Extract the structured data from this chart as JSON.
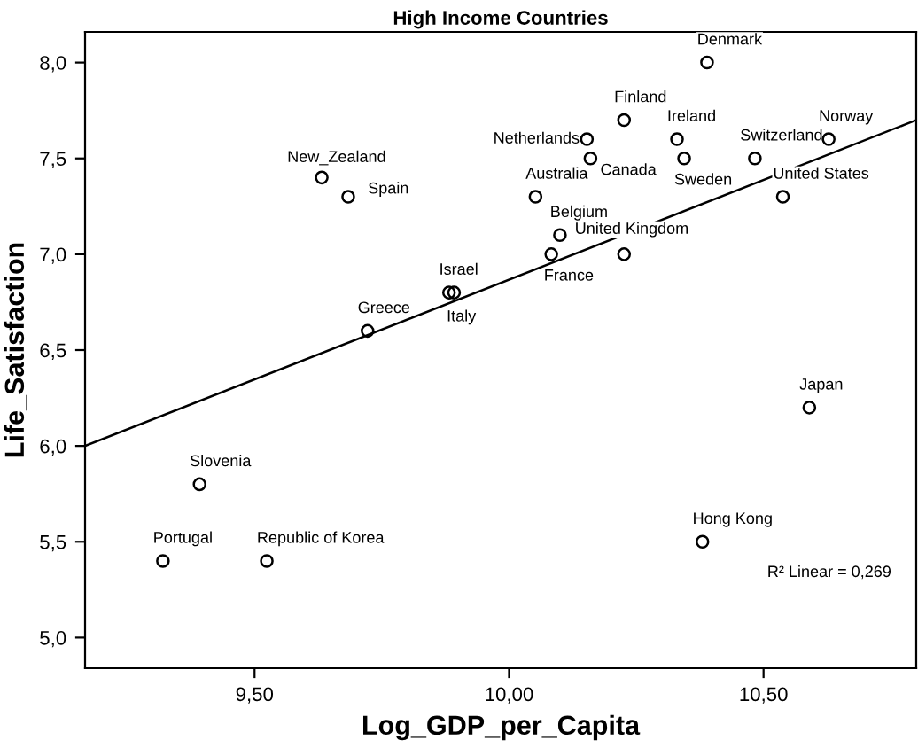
{
  "chart_data": {
    "type": "scatter",
    "title": "High Income Countries",
    "xlabel": "Log_GDP_per_Capita",
    "ylabel": "Life_Satisfaction",
    "xlim": [
      9.167,
      10.8
    ],
    "ylim": [
      4.84,
      8.16
    ],
    "xticks": [
      {
        "value": 9.5,
        "label": "9,50"
      },
      {
        "value": 10.0,
        "label": "10,00"
      },
      {
        "value": 10.5,
        "label": "10,50"
      }
    ],
    "yticks": [
      {
        "value": 5.0,
        "label": "5,0"
      },
      {
        "value": 5.5,
        "label": "5,5"
      },
      {
        "value": 6.0,
        "label": "6,0"
      },
      {
        "value": 6.5,
        "label": "6,5"
      },
      {
        "value": 7.0,
        "label": "7,0"
      },
      {
        "value": 7.5,
        "label": "7,5"
      },
      {
        "value": 8.0,
        "label": "8,0"
      }
    ],
    "grid": false,
    "marker": "circle",
    "series": [
      {
        "color": "#000000",
        "x": [
          10.389,
          10.226,
          10.33,
          10.628,
          10.153,
          10.16,
          10.344,
          10.483,
          9.632,
          9.684,
          10.052,
          10.538,
          10.1,
          10.083,
          10.226,
          9.882,
          9.892,
          9.722,
          10.59,
          10.38,
          9.392,
          9.32,
          9.524
        ],
        "values": [
          8.0,
          7.7,
          7.6,
          7.6,
          7.6,
          7.5,
          7.5,
          7.5,
          7.4,
          7.3,
          7.3,
          7.3,
          7.1,
          7.0,
          7.0,
          6.8,
          6.8,
          6.6,
          6.2,
          5.5,
          5.8,
          5.4,
          5.4
        ]
      },
      {
        "type": "line",
        "color": "#000000",
        "marker": "none",
        "x": [
          9.167,
          10.8
        ],
        "values": [
          6.0,
          7.7
        ]
      }
    ],
    "annotations": [
      {
        "text": "Denmark",
        "x": 10.389,
        "y": 8.0
      },
      {
        "text": "Finland",
        "x": 10.226,
        "y": 7.7
      },
      {
        "text": "Ireland",
        "x": 10.33,
        "y": 7.6
      },
      {
        "text": "Norway",
        "x": 10.628,
        "y": 7.6
      },
      {
        "text": "Netherlands",
        "x": 10.153,
        "y": 7.6
      },
      {
        "text": "Canada",
        "x": 10.16,
        "y": 7.5
      },
      {
        "text": "Sweden",
        "x": 10.344,
        "y": 7.5
      },
      {
        "text": "Switzerland",
        "x": 10.483,
        "y": 7.5
      },
      {
        "text": "New_Zealand",
        "x": 9.632,
        "y": 7.4
      },
      {
        "text": "Spain",
        "x": 9.684,
        "y": 7.3
      },
      {
        "text": "Australia",
        "x": 10.052,
        "y": 7.3
      },
      {
        "text": "United States",
        "x": 10.538,
        "y": 7.3
      },
      {
        "text": "Belgium",
        "x": 10.1,
        "y": 7.1
      },
      {
        "text": "France",
        "x": 10.083,
        "y": 7.0
      },
      {
        "text": "United Kingdom",
        "x": 10.226,
        "y": 7.0
      },
      {
        "text": "Israel",
        "x": 9.882,
        "y": 6.8
      },
      {
        "text": "Italy",
        "x": 9.892,
        "y": 6.8
      },
      {
        "text": "Greece",
        "x": 9.722,
        "y": 6.6
      },
      {
        "text": "Japan",
        "x": 10.59,
        "y": 6.2
      },
      {
        "text": "Hong Kong",
        "x": 10.38,
        "y": 5.5
      },
      {
        "text": "Slovenia",
        "x": 9.392,
        "y": 5.8
      },
      {
        "text": "Portugal",
        "x": 9.32,
        "y": 5.4
      },
      {
        "text": "Republic of Korea",
        "x": 9.524,
        "y": 5.4
      },
      "R² Linear = 0,269"
    ]
  }
}
